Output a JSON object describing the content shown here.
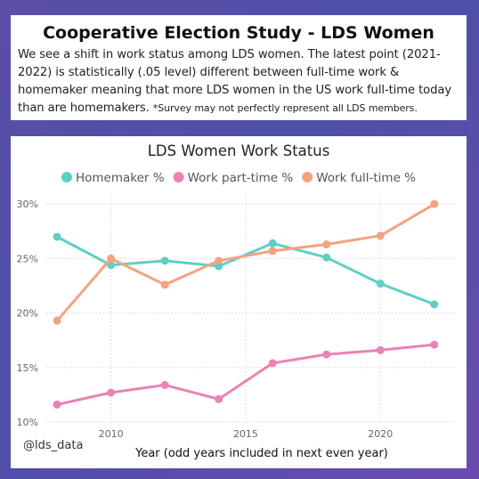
{
  "header": {
    "title": "Cooperative Election Study - LDS Women",
    "description": "We see a shift in work status among LDS women. The latest point (2021-2022) is statistically (.05 level) different between full-time work & homemaker meaning that more LDS women in the US work full-time today than are homemakers.",
    "footnote": "*Survey may not perfectly represent all LDS members."
  },
  "watermark": "@lds_data",
  "chart_data": {
    "type": "line",
    "title": "LDS Women Work Status",
    "xlabel": "Year (odd years included in next even year)",
    "ylabel": "",
    "x": [
      2008,
      2010,
      2012,
      2014,
      2016,
      2018,
      2020,
      2022
    ],
    "xlim": [
      2007.6,
      2022.8
    ],
    "ylim": [
      10,
      31
    ],
    "x_ticks": [
      2010,
      2015,
      2020
    ],
    "x_tick_labels": [
      "2010",
      "2015",
      "2020"
    ],
    "y_ticks": [
      10,
      15,
      20,
      25,
      30
    ],
    "y_tick_labels": [
      "10%",
      "15%",
      "20%",
      "25%",
      "30%"
    ],
    "grid": true,
    "legend_position": "top",
    "series": [
      {
        "name": "Homemaker %",
        "color": "#5fcfc4",
        "values": [
          27.0,
          24.4,
          24.8,
          24.3,
          26.4,
          25.1,
          22.7,
          20.8
        ]
      },
      {
        "name": "Work part-time %",
        "color": "#e884b5",
        "values": [
          11.6,
          12.7,
          13.4,
          12.1,
          15.4,
          16.2,
          16.6,
          17.1
        ]
      },
      {
        "name": "Work full-time %",
        "color": "#f4a282",
        "values": [
          19.3,
          25.0,
          22.6,
          24.8,
          25.7,
          26.3,
          27.1,
          30.0
        ]
      }
    ]
  }
}
